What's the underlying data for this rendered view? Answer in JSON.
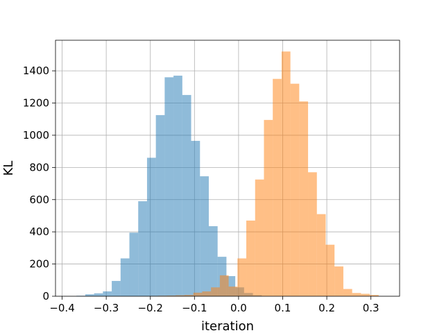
{
  "chart_data": {
    "type": "histogram",
    "xlabel": "iteration",
    "ylabel": "KL",
    "xlim": [
      -0.415,
      0.365
    ],
    "ylim": [
      0,
      1590
    ],
    "grid": true,
    "x_ticks": [
      -0.4,
      -0.3,
      -0.2,
      -0.1,
      0.0,
      0.1,
      0.2,
      0.3
    ],
    "x_tick_labels": [
      "−0.4",
      "−0.3",
      "−0.2",
      "−0.1",
      "0.0",
      "0.1",
      "0.2",
      "0.3"
    ],
    "y_ticks": [
      0,
      200,
      400,
      600,
      800,
      1000,
      1200,
      1400
    ],
    "y_tick_labels": [
      "0",
      "200",
      "400",
      "600",
      "800",
      "1000",
      "1200",
      "1400"
    ],
    "series": [
      {
        "color": "#1f77b4",
        "alpha": 0.5,
        "bins": [
          {
            "x0": -0.3675,
            "x1": -0.3475,
            "count": 3
          },
          {
            "x0": -0.3475,
            "x1": -0.3275,
            "count": 12
          },
          {
            "x0": -0.3275,
            "x1": -0.3075,
            "count": 18
          },
          {
            "x0": -0.3075,
            "x1": -0.2875,
            "count": 30
          },
          {
            "x0": -0.2875,
            "x1": -0.2675,
            "count": 95
          },
          {
            "x0": -0.2675,
            "x1": -0.2475,
            "count": 235
          },
          {
            "x0": -0.2475,
            "x1": -0.2275,
            "count": 395
          },
          {
            "x0": -0.2275,
            "x1": -0.2075,
            "count": 590
          },
          {
            "x0": -0.2075,
            "x1": -0.1875,
            "count": 860
          },
          {
            "x0": -0.1875,
            "x1": -0.1675,
            "count": 1125
          },
          {
            "x0": -0.1675,
            "x1": -0.1475,
            "count": 1360
          },
          {
            "x0": -0.1475,
            "x1": -0.1275,
            "count": 1370
          },
          {
            "x0": -0.1275,
            "x1": -0.1075,
            "count": 1250
          },
          {
            "x0": -0.1075,
            "x1": -0.0875,
            "count": 965
          },
          {
            "x0": -0.0875,
            "x1": -0.0675,
            "count": 745
          },
          {
            "x0": -0.0675,
            "x1": -0.0475,
            "count": 435
          },
          {
            "x0": -0.0475,
            "x1": -0.0275,
            "count": 245
          },
          {
            "x0": -0.0275,
            "x1": -0.0075,
            "count": 125
          },
          {
            "x0": -0.0075,
            "x1": 0.0125,
            "count": 55
          },
          {
            "x0": 0.0125,
            "x1": 0.0325,
            "count": 20
          },
          {
            "x0": 0.0325,
            "x1": 0.0525,
            "count": 6
          }
        ]
      },
      {
        "color": "#ff7f0e",
        "alpha": 0.5,
        "bins": [
          {
            "x0": -0.2225,
            "x1": -0.2025,
            "count": 1
          },
          {
            "x0": -0.2025,
            "x1": -0.1825,
            "count": 2
          },
          {
            "x0": -0.1825,
            "x1": -0.1625,
            "count": 3
          },
          {
            "x0": -0.1625,
            "x1": -0.1425,
            "count": 4
          },
          {
            "x0": -0.1425,
            "x1": -0.1225,
            "count": 6
          },
          {
            "x0": -0.1225,
            "x1": -0.1025,
            "count": 8
          },
          {
            "x0": -0.1025,
            "x1": -0.0825,
            "count": 22
          },
          {
            "x0": -0.0825,
            "x1": -0.0625,
            "count": 30
          },
          {
            "x0": -0.0625,
            "x1": -0.0425,
            "count": 55
          },
          {
            "x0": -0.0425,
            "x1": -0.0225,
            "count": 130
          },
          {
            "x0": -0.0225,
            "x1": -0.0025,
            "count": 60
          },
          {
            "x0": -0.0025,
            "x1": 0.0175,
            "count": 235
          },
          {
            "x0": 0.0175,
            "x1": 0.0375,
            "count": 470
          },
          {
            "x0": 0.0375,
            "x1": 0.0575,
            "count": 725
          },
          {
            "x0": 0.0575,
            "x1": 0.0775,
            "count": 1095
          },
          {
            "x0": 0.0775,
            "x1": 0.0975,
            "count": 1350
          },
          {
            "x0": 0.0975,
            "x1": 0.1175,
            "count": 1520
          },
          {
            "x0": 0.1175,
            "x1": 0.1375,
            "count": 1320
          },
          {
            "x0": 0.1375,
            "x1": 0.1575,
            "count": 1210
          },
          {
            "x0": 0.1575,
            "x1": 0.1775,
            "count": 770
          },
          {
            "x0": 0.1775,
            "x1": 0.1975,
            "count": 510
          },
          {
            "x0": 0.1975,
            "x1": 0.2175,
            "count": 320
          },
          {
            "x0": 0.2175,
            "x1": 0.2375,
            "count": 185
          },
          {
            "x0": 0.2375,
            "x1": 0.2575,
            "count": 45
          },
          {
            "x0": 0.2575,
            "x1": 0.2775,
            "count": 20
          },
          {
            "x0": 0.2775,
            "x1": 0.2975,
            "count": 15
          },
          {
            "x0": 0.2975,
            "x1": 0.3175,
            "count": 8
          }
        ]
      }
    ]
  }
}
